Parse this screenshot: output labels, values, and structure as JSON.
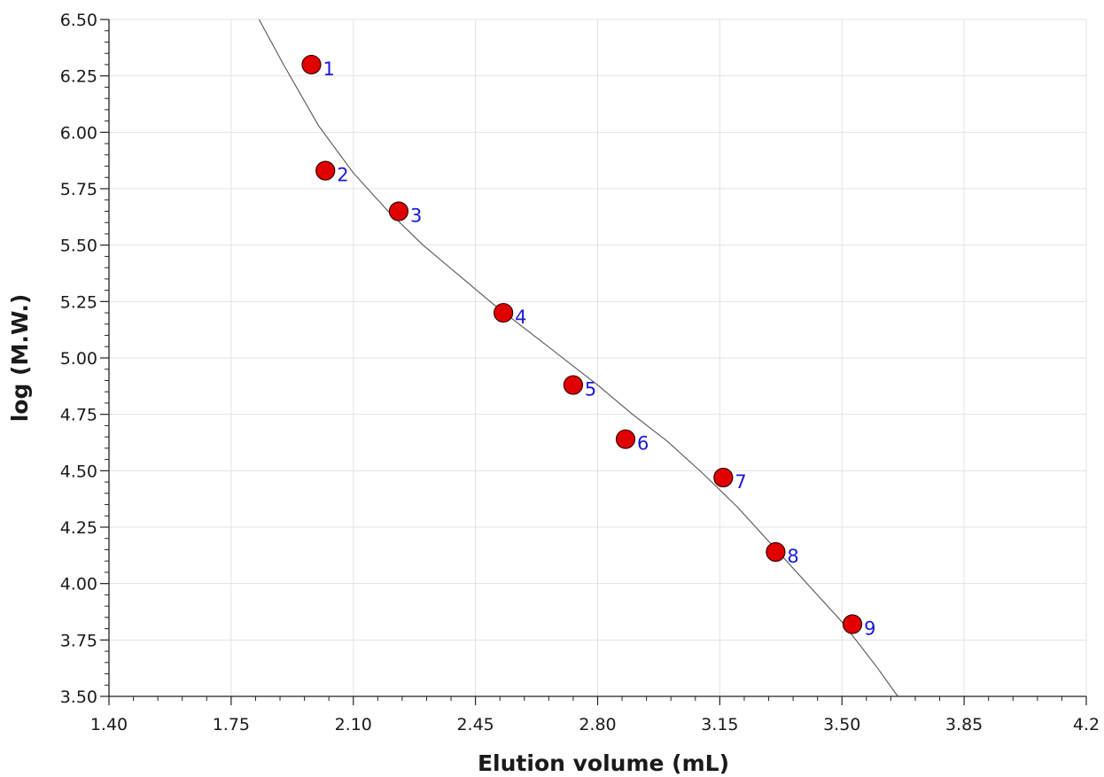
{
  "chart_data": {
    "type": "scatter",
    "title": "",
    "xlabel": "Elution volume (mL)",
    "ylabel": "log (M.W.)",
    "xlim": [
      1.4,
      4.2
    ],
    "ylim": [
      3.5,
      6.5
    ],
    "x_ticks": [
      "1.40",
      "1.75",
      "2.10",
      "2.45",
      "2.80",
      "3.15",
      "3.50",
      "3.85",
      "4.2"
    ],
    "y_ticks": [
      "6.50",
      "6.25",
      "6.00",
      "5.75",
      "5.50",
      "5.25",
      "5.00",
      "4.75",
      "4.50",
      "4.25",
      "4.00",
      "3.75",
      "3.50"
    ],
    "grid": true,
    "marker_color": "#e00000",
    "point_label_color": "#1a1ad8",
    "curve_color": "#555555",
    "series": [
      {
        "points": [
          {
            "label": "1",
            "x": 1.98,
            "y": 6.3
          },
          {
            "label": "2",
            "x": 2.02,
            "y": 5.83
          },
          {
            "label": "3",
            "x": 2.23,
            "y": 5.65
          },
          {
            "label": "4",
            "x": 2.53,
            "y": 5.2
          },
          {
            "label": "5",
            "x": 2.73,
            "y": 4.88
          },
          {
            "label": "6",
            "x": 2.88,
            "y": 4.64
          },
          {
            "label": "7",
            "x": 3.16,
            "y": 4.47
          },
          {
            "label": "8",
            "x": 3.31,
            "y": 4.14
          },
          {
            "label": "9",
            "x": 3.53,
            "y": 3.82
          }
        ]
      }
    ],
    "fit_curve": [
      [
        1.83,
        6.5
      ],
      [
        1.9,
        6.3
      ],
      [
        2.0,
        6.03
      ],
      [
        2.1,
        5.82
      ],
      [
        2.2,
        5.65
      ],
      [
        2.3,
        5.5
      ],
      [
        2.4,
        5.37
      ],
      [
        2.5,
        5.24
      ],
      [
        2.6,
        5.12
      ],
      [
        2.7,
        5.0
      ],
      [
        2.8,
        4.88
      ],
      [
        2.9,
        4.75
      ],
      [
        3.0,
        4.63
      ],
      [
        3.1,
        4.49
      ],
      [
        3.2,
        4.34
      ],
      [
        3.3,
        4.17
      ],
      [
        3.4,
        4.0
      ],
      [
        3.5,
        3.83
      ],
      [
        3.6,
        3.63
      ],
      [
        3.66,
        3.5
      ]
    ]
  }
}
